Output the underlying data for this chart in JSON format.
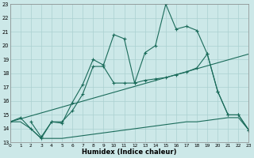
{
  "xlabel": "Humidex (Indice chaleur)",
  "bg_color": "#cce8e8",
  "grid_color": "#aad0d0",
  "line_color": "#1a6b5a",
  "xlim": [
    0,
    23
  ],
  "ylim": [
    13,
    23
  ],
  "xticks": [
    0,
    1,
    2,
    3,
    4,
    5,
    6,
    7,
    8,
    9,
    10,
    11,
    12,
    13,
    14,
    15,
    16,
    17,
    18,
    19,
    20,
    21,
    22,
    23
  ],
  "yticks": [
    13,
    14,
    15,
    16,
    17,
    18,
    19,
    20,
    21,
    22,
    23
  ],
  "line1_x": [
    0,
    1,
    2,
    3,
    4,
    5,
    6,
    7,
    8,
    9,
    10,
    11,
    12,
    13,
    14,
    15,
    16,
    17,
    18,
    19,
    20,
    21,
    22,
    23
  ],
  "line1_y": [
    14.5,
    14.8,
    14.0,
    13.3,
    14.5,
    14.4,
    15.9,
    17.2,
    19.0,
    18.6,
    20.8,
    20.5,
    17.3,
    19.5,
    20.0,
    23.0,
    21.2,
    21.4,
    21.1,
    19.4,
    16.7,
    15.0,
    15.0,
    13.9
  ],
  "line2_x": [
    2,
    3,
    4,
    5,
    6,
    7,
    8,
    9,
    10,
    11,
    12,
    13,
    14,
    15,
    16,
    17,
    18,
    19,
    20,
    21,
    22,
    23
  ],
  "line2_y": [
    14.5,
    13.4,
    14.5,
    14.5,
    15.3,
    16.5,
    18.5,
    18.5,
    17.3,
    17.3,
    17.3,
    17.5,
    17.6,
    17.7,
    17.9,
    18.1,
    18.4,
    19.4,
    16.7,
    15.0,
    15.0,
    13.9
  ],
  "line3_x": [
    0,
    23
  ],
  "line3_y": [
    14.5,
    19.4
  ],
  "line4_x": [
    0,
    1,
    2,
    3,
    4,
    5,
    6,
    7,
    8,
    9,
    10,
    11,
    12,
    13,
    14,
    15,
    16,
    17,
    18,
    19,
    20,
    21,
    22,
    23
  ],
  "line4_y": [
    14.5,
    14.5,
    14.0,
    13.3,
    13.3,
    13.3,
    13.4,
    13.5,
    13.6,
    13.7,
    13.8,
    13.9,
    14.0,
    14.1,
    14.2,
    14.3,
    14.4,
    14.5,
    14.5,
    14.6,
    14.7,
    14.8,
    14.8,
    13.9
  ]
}
